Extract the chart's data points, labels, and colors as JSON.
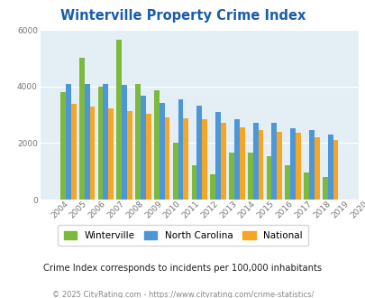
{
  "title": "Winterville Property Crime Index",
  "years": [
    2004,
    2005,
    2006,
    2007,
    2008,
    2009,
    2010,
    2011,
    2012,
    2013,
    2014,
    2015,
    2016,
    2017,
    2018,
    2019,
    2020
  ],
  "winterville": [
    null,
    3800,
    5000,
    3980,
    5650,
    4100,
    3850,
    2020,
    1200,
    900,
    1650,
    1650,
    1550,
    1200,
    950,
    800,
    null
  ],
  "north_carolina": [
    null,
    4100,
    4100,
    4080,
    4050,
    3680,
    3420,
    3550,
    3330,
    3100,
    2840,
    2700,
    2700,
    2520,
    2470,
    2300,
    null
  ],
  "national": [
    null,
    3380,
    3280,
    3230,
    3130,
    3020,
    2900,
    2870,
    2850,
    2720,
    2570,
    2460,
    2400,
    2360,
    2200,
    2100,
    null
  ],
  "wv_color": "#7cba3d",
  "nc_color": "#4d97d8",
  "nat_color": "#f5a624",
  "bg_color": "#e3eff4",
  "title_color": "#1a5dab",
  "subtitle": "Crime Index corresponds to incidents per 100,000 inhabitants",
  "footer": "© 2025 CityRating.com - https://www.cityrating.com/crime-statistics/",
  "ylim": [
    0,
    6000
  ],
  "yticks": [
    0,
    2000,
    4000,
    6000
  ]
}
